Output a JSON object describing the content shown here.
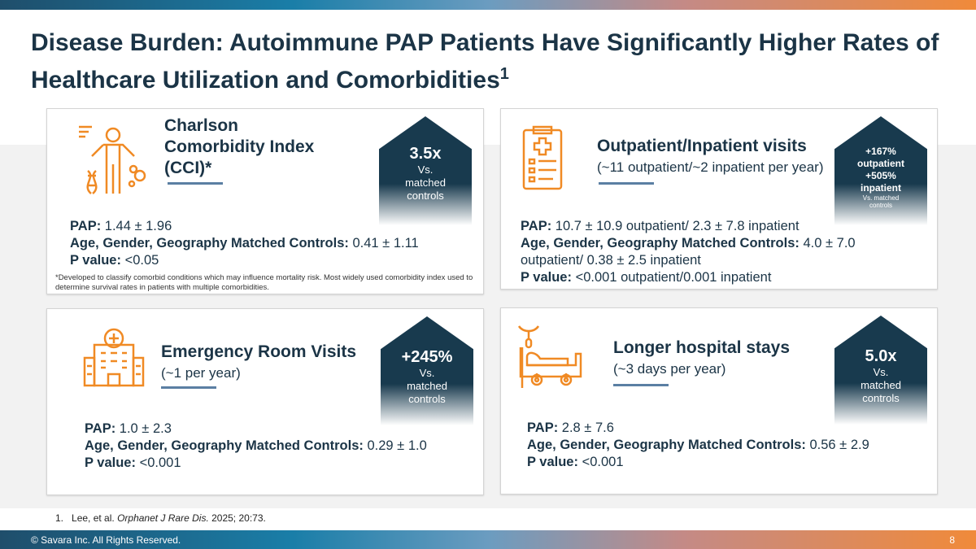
{
  "title": "Disease Burden: Autoimmune PAP Patients Have Significantly Higher Rates of Healthcare Utilization and Comorbidities",
  "title_sup": "1",
  "cards": [
    {
      "icon": "human-body-dna-icon",
      "heading": "Charlson Comorbidity Index (CCI)*",
      "subheading": "",
      "badge": {
        "big": "3.5x",
        "l1": "Vs.",
        "l2": "matched",
        "l3": "controls"
      },
      "pap_label": "PAP:",
      "pap": " 1.44 ± 1.96",
      "ctrl_label": "Age, Gender, Geography Matched Controls:",
      "ctrl": " 0.41 ± 1.11",
      "p_label": "P value:",
      "p": " <0.05",
      "note": "*Developed to classify comorbid conditions which may influence mortality risk. Most widely used comorbidity index used to determine survival rates in patients with multiple comorbidities."
    },
    {
      "icon": "clipboard-medical-icon",
      "heading": "Outpatient/Inpatient visits",
      "subheading": "(~11 outpatient/~2 inpatient per year)",
      "badge": {
        "l1": "+167%",
        "l2": "outpatient",
        "l3": "+505%",
        "l4": "inpatient",
        "small": "Vs. matched controls"
      },
      "pap_label": "PAP:",
      "pap": " 10.7 ± 10.9 outpatient/ 2.3 ± 7.8 inpatient",
      "ctrl_label": "Age, Gender, Geography Matched Controls:",
      "ctrl": " 4.0 ± 7.0 outpatient/ 0.38 ± 2.5 inpatient",
      "p_label": "P value:",
      "p": " <0.001 outpatient/0.001 inpatient"
    },
    {
      "icon": "hospital-building-icon",
      "heading": "Emergency Room Visits",
      "subheading": "(~1 per year)",
      "badge": {
        "big": "+245%",
        "l1": "Vs.",
        "l2": "matched",
        "l3": "controls"
      },
      "pap_label": "PAP:",
      "pap": " 1.0 ± 2.3",
      "ctrl_label": "Age, Gender, Geography Matched Controls:",
      "ctrl": " 0.29 ± 1.0",
      "p_label": "P value:",
      "p": " <0.001"
    },
    {
      "icon": "hospital-bed-icon",
      "heading": "Longer hospital stays",
      "subheading": "(~3 days per year)",
      "badge": {
        "big": "5.0x",
        "l1": "Vs.",
        "l2": "matched",
        "l3": "controls"
      },
      "pap_label": "PAP:",
      "pap": " 2.8 ± 7.6",
      "ctrl_label": "Age, Gender, Geography Matched Controls:",
      "ctrl": " 0.56 ± 2.9",
      "p_label": "P value:",
      "p": " <0.001"
    }
  ],
  "reference": {
    "num": "1.",
    "authors": "Lee, et al. ",
    "journal": "Orphanet J Rare Dis.",
    "rest": " 2025; 20:73."
  },
  "footer": {
    "copyright": "© Savara Inc. All Rights Reserved.",
    "page": "8"
  },
  "colors": {
    "navy": "#1b3446",
    "orange": "#f08a24",
    "accent_rule": "#5b7fa3"
  }
}
